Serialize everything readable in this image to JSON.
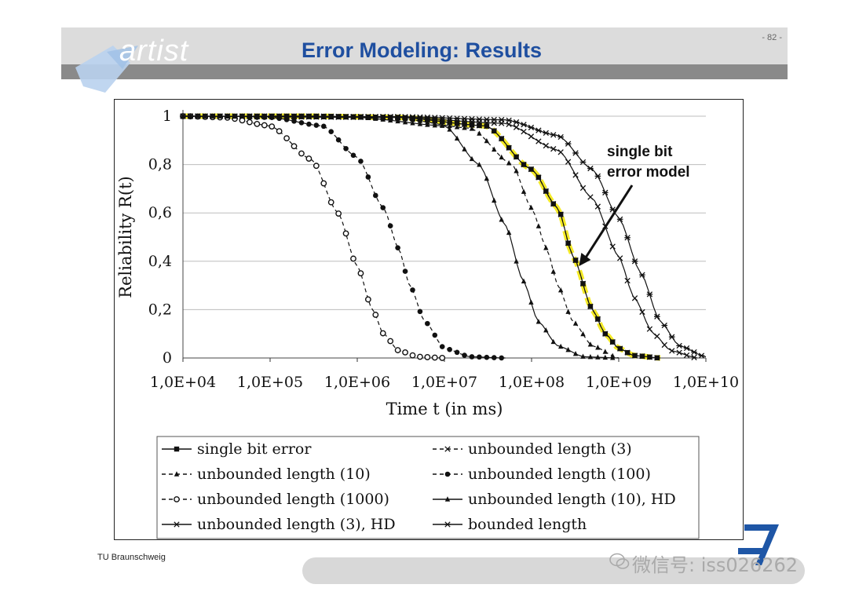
{
  "slide": {
    "logo_text": "artist",
    "title": "Error Modeling: Results",
    "page_number": "- 82 -",
    "footer": "TU Braunschweig",
    "watermark": "微信号: iss026262"
  },
  "colors": {
    "title_blue": "#1f4fa0",
    "header_light": "#dcdcdc",
    "header_dark": "#8a8a8a",
    "highlight_yellow": "#f2e600"
  },
  "chart_data": {
    "type": "line",
    "x_scale": "log",
    "xlim": [
      10000,
      10000000000
    ],
    "ylim": [
      0,
      1
    ],
    "xlabel": "Time t (in ms)",
    "ylabel": "Reliability R(t)",
    "x_ticks": [
      "1,0E+04",
      "1,0E+05",
      "1,0E+06",
      "1,0E+07",
      "1,0E+08",
      "1,0E+09",
      "1,0E+10"
    ],
    "y_ticks": [
      "0",
      "0,2",
      "0,4",
      "0,6",
      "0,8",
      "1"
    ],
    "grid": "horizontal",
    "legend_position": "bottom",
    "annotation": {
      "lines": [
        "single bit",
        "error model"
      ],
      "arrow_target": {
        "x": 350000000,
        "y": 0.38
      }
    },
    "series": [
      {
        "name": "single bit error",
        "marker": "square",
        "dash": "solid",
        "highlight": true,
        "x": [
          10000,
          300000,
          3000000,
          30000000,
          100000000,
          200000000,
          300000000,
          500000000,
          700000000,
          1000000000,
          1500000000,
          3000000000
        ],
        "y": [
          1,
          1,
          0.995,
          0.96,
          0.78,
          0.62,
          0.42,
          0.2,
          0.1,
          0.04,
          0.01,
          0
        ]
      },
      {
        "name": "unbounded length (3)",
        "marker": "x",
        "dash": "dashed",
        "x": [
          10000,
          300000,
          3000000,
          30000000,
          100000000,
          200000000,
          300000000,
          500000000,
          700000000,
          1000000000,
          1500000000,
          3000000000
        ],
        "y": [
          1,
          1,
          0.995,
          0.96,
          0.78,
          0.62,
          0.42,
          0.2,
          0.1,
          0.04,
          0.01,
          0
        ]
      },
      {
        "name": "unbounded length (10)",
        "marker": "triangle",
        "dash": "dashed",
        "x": [
          10000,
          300000,
          3000000,
          20000000,
          60000000,
          100000000,
          150000000,
          200000000,
          300000000,
          500000000,
          1000000000
        ],
        "y": [
          1,
          1,
          0.99,
          0.95,
          0.8,
          0.62,
          0.45,
          0.3,
          0.15,
          0.05,
          0
        ]
      },
      {
        "name": "unbounded length (100)",
        "marker": "filled-circle",
        "dash": "dashed",
        "x": [
          10000,
          100000,
          400000,
          1000000,
          2000000,
          3000000,
          4000000,
          6000000,
          10000000,
          20000000,
          50000000
        ],
        "y": [
          1,
          0.995,
          0.96,
          0.83,
          0.62,
          0.45,
          0.3,
          0.15,
          0.04,
          0.005,
          0
        ]
      },
      {
        "name": "unbounded length  (1000)",
        "marker": "open-circle",
        "dash": "dashed",
        "x": [
          10000,
          30000,
          100000,
          300000,
          600000,
          1000000,
          1500000,
          2000000,
          3000000,
          5000000,
          10000000
        ],
        "y": [
          1,
          0.995,
          0.96,
          0.82,
          0.6,
          0.38,
          0.2,
          0.1,
          0.03,
          0.005,
          0
        ]
      },
      {
        "name": "unbounded length (10), HD",
        "marker": "triangle",
        "dash": "solid",
        "x": [
          10000,
          1000000,
          10000000,
          25000000,
          50000000,
          80000000,
          120000000,
          200000000,
          400000000,
          1000000000
        ],
        "y": [
          1,
          0.995,
          0.96,
          0.8,
          0.55,
          0.32,
          0.15,
          0.05,
          0.005,
          0
        ]
      },
      {
        "name": "unbounded length (3), HD",
        "marker": "x",
        "dash": "solid",
        "x": [
          10000,
          3000000,
          50000000,
          200000000,
          500000000,
          1000000000,
          1500000000,
          2500000000,
          4000000000,
          8000000000
        ],
        "y": [
          1,
          0.995,
          0.97,
          0.86,
          0.66,
          0.42,
          0.25,
          0.1,
          0.03,
          0
        ]
      },
      {
        "name": "bounded length",
        "marker": "star",
        "dash": "solid",
        "x": [
          10000,
          3000000,
          50000000,
          200000000,
          500000000,
          1000000000,
          1800000000,
          3000000000,
          5000000000,
          10000000000
        ],
        "y": [
          1,
          0.998,
          0.985,
          0.92,
          0.78,
          0.58,
          0.35,
          0.15,
          0.05,
          0.005
        ]
      }
    ]
  }
}
